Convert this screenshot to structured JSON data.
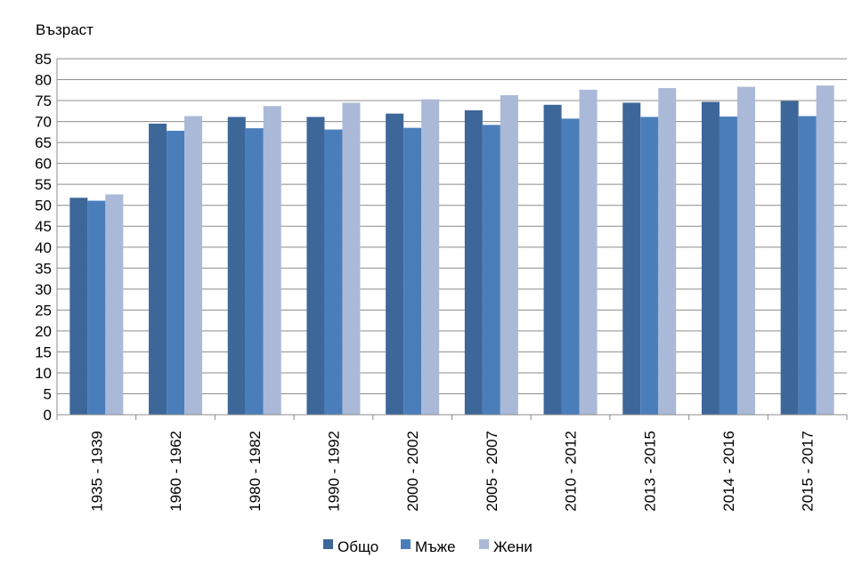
{
  "chart_data": {
    "type": "bar",
    "title": "",
    "xlabel": "",
    "ylabel": "Възраст",
    "ylim": [
      0,
      85
    ],
    "ytick_step": 5,
    "grid": true,
    "legend_position": "bottom",
    "categories": [
      "1935 - 1939",
      "1960 - 1962",
      "1980 - 1982",
      "1990 - 1992",
      "2000 - 2002",
      "2005 - 2007",
      "2010 - 2012",
      "2013 - 2015",
      "2014 - 2016",
      "2015 - 2017"
    ],
    "series": [
      {
        "name": "Общо",
        "color": "#3d6699",
        "values": [
          51.8,
          69.5,
          71.1,
          71.1,
          71.9,
          72.7,
          74.0,
          74.5,
          74.7,
          74.9
        ]
      },
      {
        "name": "Мъже",
        "color": "#4a7ebb",
        "values": [
          51.1,
          67.8,
          68.4,
          68.1,
          68.5,
          69.2,
          70.7,
          71.1,
          71.2,
          71.3
        ]
      },
      {
        "name": "Жени",
        "color": "#aab9d7",
        "values": [
          52.6,
          71.3,
          73.7,
          74.5,
          75.3,
          76.3,
          77.6,
          78.0,
          78.3,
          78.6
        ]
      }
    ]
  }
}
